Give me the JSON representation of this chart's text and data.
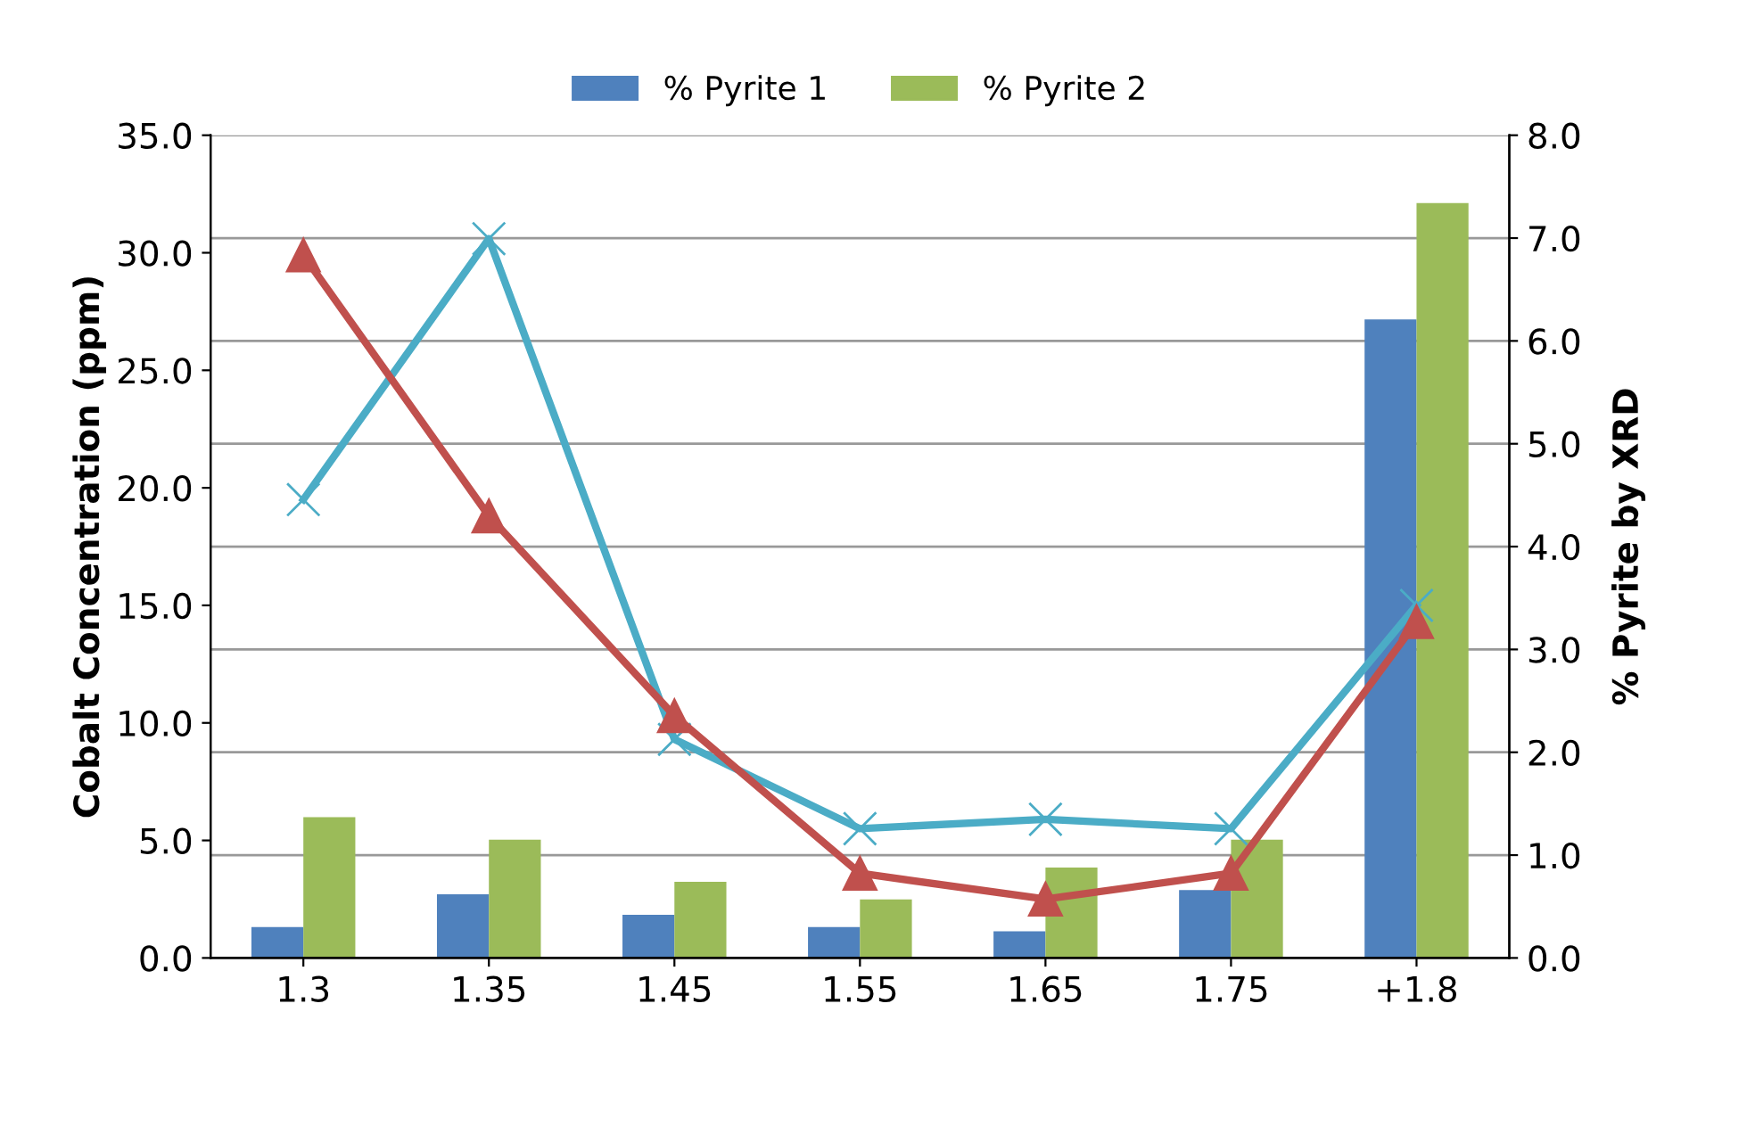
{
  "chart_data": {
    "type": "bar",
    "ylabel": "Cobalt Concentration (ppm)",
    "y2label": "% Pyrite by XRD",
    "categories": [
      "1.3",
      "1.35",
      "1.45",
      "1.55",
      "1.65",
      "1.75",
      "+1.8"
    ],
    "series": [
      {
        "name": "% Pyrite 1",
        "color": "#4f81bd",
        "axis": "y2",
        "values": [
          0.3,
          0.62,
          0.42,
          0.3,
          0.26,
          0.66,
          6.21
        ]
      },
      {
        "name": "% Pyrite 2",
        "color": "#9bbb59",
        "axis": "y2",
        "values": [
          1.37,
          1.15,
          0.74,
          0.57,
          0.88,
          1.15,
          7.34
        ]
      },
      {
        "type": "line",
        "color": "#4bacc6",
        "marker": "cross",
        "values": [
          19.5,
          30.6,
          9.3,
          5.5,
          5.9,
          5.5,
          15.0
        ]
      },
      {
        "type": "line",
        "color": "#c0504d",
        "marker": "triangle",
        "values": [
          29.9,
          18.8,
          10.3,
          3.6,
          2.5,
          3.6,
          14.3
        ]
      }
    ],
    "ylim": [
      0,
      35
    ],
    "yticks": [
      {
        "value": 0,
        "label": "0.0"
      },
      {
        "value": 5,
        "label": "5.0"
      },
      {
        "value": 10,
        "label": "10.0"
      },
      {
        "value": 15,
        "label": "15.0"
      },
      {
        "value": 20,
        "label": "20.0"
      },
      {
        "value": 25,
        "label": "25.0"
      },
      {
        "value": 30,
        "label": "30.0"
      },
      {
        "value": 35,
        "label": "35.0"
      }
    ],
    "y2lim": [
      0,
      8
    ],
    "y2ticks": [
      {
        "value": 0,
        "label": "0.0"
      },
      {
        "value": 1,
        "label": "1.0"
      },
      {
        "value": 2,
        "label": "2.0"
      },
      {
        "value": 3,
        "label": "3.0"
      },
      {
        "value": 4,
        "label": "4.0"
      },
      {
        "value": 5,
        "label": "5.0"
      },
      {
        "value": 6,
        "label": "6.0"
      },
      {
        "value": 7,
        "label": "7.0"
      },
      {
        "value": 8,
        "label": "8.0"
      }
    ],
    "grid": "y",
    "legend": "top"
  }
}
